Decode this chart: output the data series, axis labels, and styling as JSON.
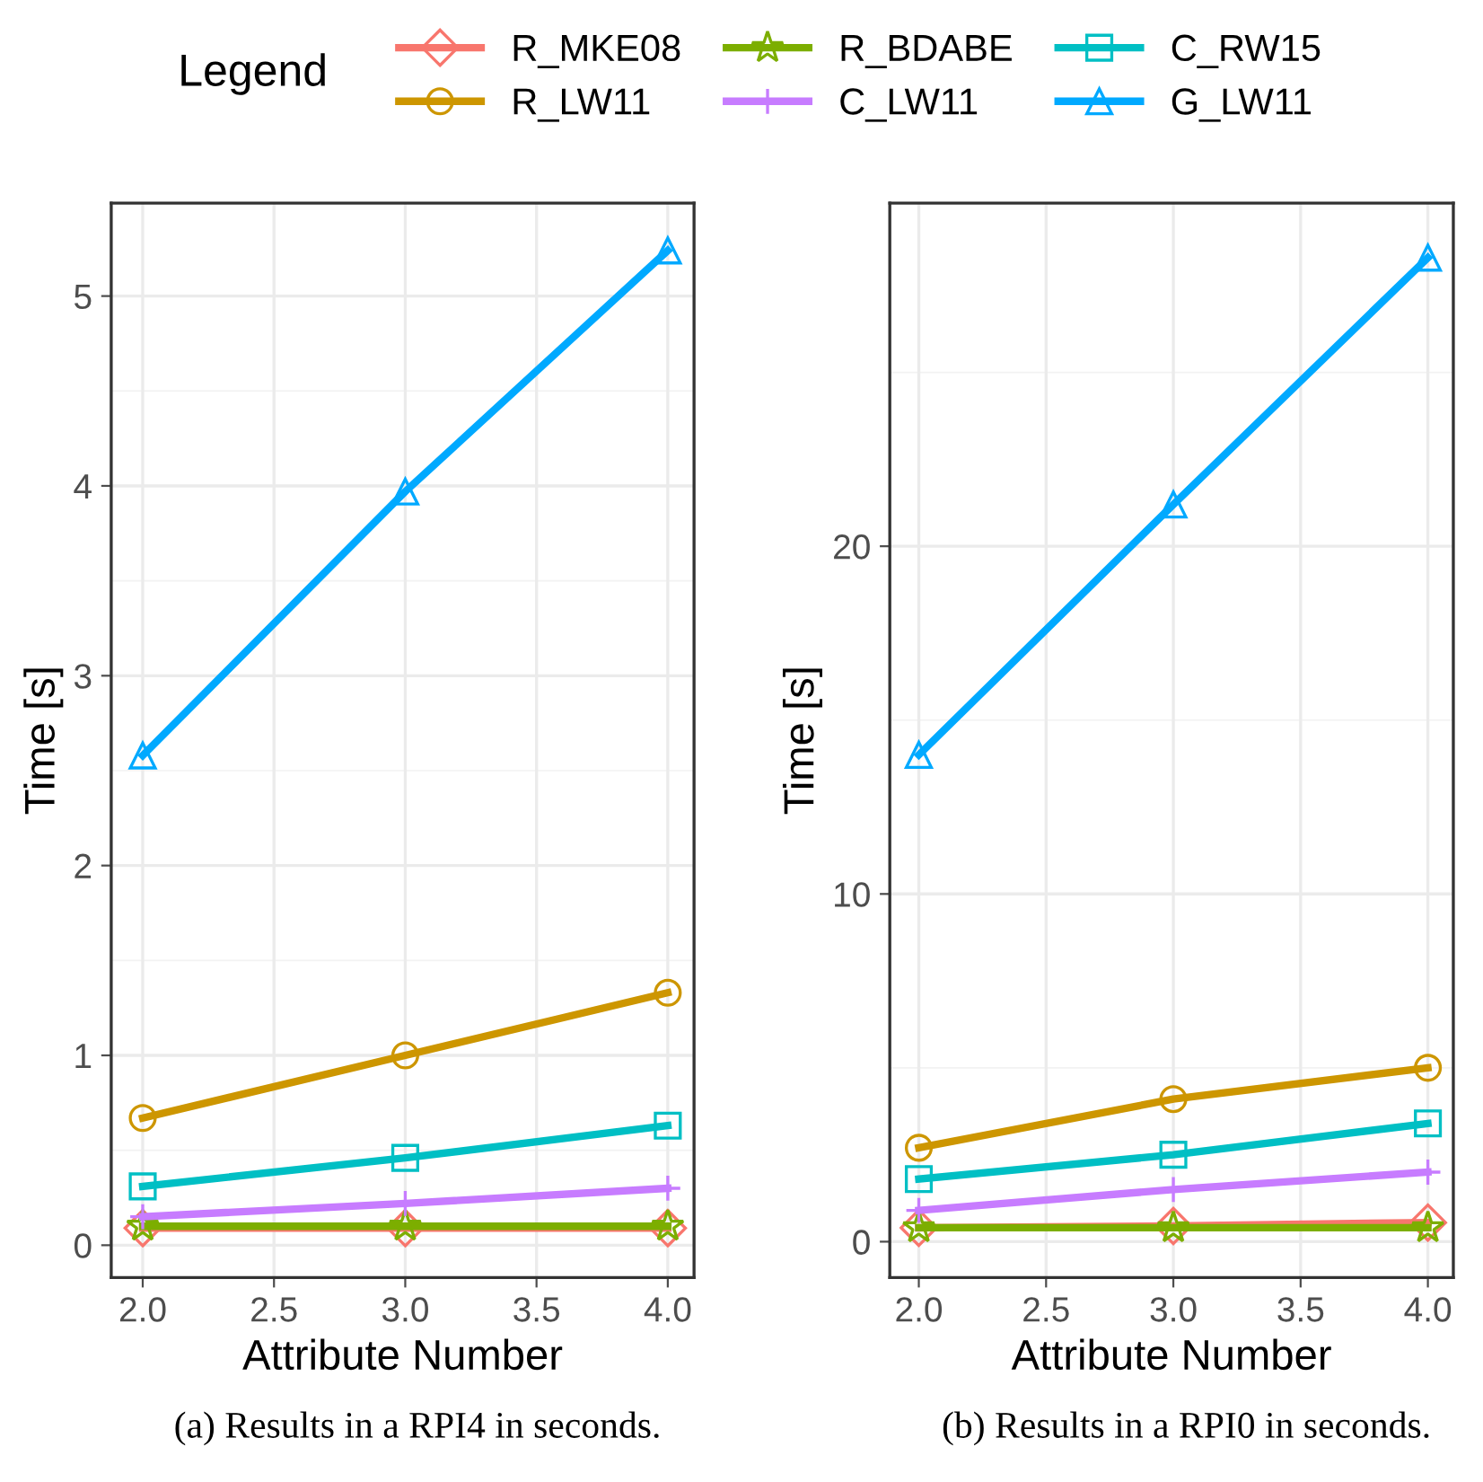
{
  "chart_data": [
    {
      "type": "line",
      "xlabel": "Attribute Number",
      "ylabel": "Time [s]",
      "legend_title": "Legend",
      "legend": "top",
      "grid": true,
      "line_style": "solid",
      "x": [
        2.0,
        3.0,
        4.0
      ],
      "xlim": [
        1.88,
        4.1
      ],
      "ylim": [
        -0.17,
        5.49
      ],
      "xticks": [
        {
          "value": 2.0,
          "label": "2.0"
        },
        {
          "value": 2.5,
          "label": "2.5"
        },
        {
          "value": 3.0,
          "label": "3.0"
        },
        {
          "value": 3.5,
          "label": "3.5"
        },
        {
          "value": 4.0,
          "label": "4.0"
        }
      ],
      "yticks": [
        0,
        1,
        2,
        3,
        4,
        5
      ],
      "annotations": [
        "(a) Results in a RPI4 in seconds."
      ],
      "series": [
        {
          "name": "R_MKE08",
          "color": "#f8766d",
          "marker": "diamond",
          "values": [
            0.09,
            0.09,
            0.09
          ]
        },
        {
          "name": "R_LW11",
          "color": "#cd9600",
          "marker": "circle",
          "values": [
            0.67,
            1.0,
            1.33
          ]
        },
        {
          "name": "R_BDABE",
          "color": "#7cae00",
          "marker": "star",
          "values": [
            0.1,
            0.1,
            0.1
          ]
        },
        {
          "name": "C_LW11",
          "color": "#c77cff",
          "marker": "cross",
          "values": [
            0.15,
            0.22,
            0.3
          ]
        },
        {
          "name": "C_RW15",
          "color": "#00bfc4",
          "marker": "square",
          "values": [
            0.31,
            0.46,
            0.63
          ]
        },
        {
          "name": "G_LW11",
          "color": "#00a9ff",
          "marker": "triangle",
          "values": [
            2.58,
            3.97,
            5.24
          ]
        }
      ]
    },
    {
      "type": "line",
      "xlabel": "Attribute Number",
      "ylabel": "Time [s]",
      "grid": true,
      "line_style": "solid",
      "x": [
        2.0,
        3.0,
        4.0
      ],
      "xlim": [
        1.886,
        4.1
      ],
      "ylim": [
        -1.03,
        29.87
      ],
      "xticks": [
        {
          "value": 2.0,
          "label": "2.0"
        },
        {
          "value": 2.5,
          "label": "2.5"
        },
        {
          "value": 3.0,
          "label": "3.0"
        },
        {
          "value": 3.5,
          "label": "3.5"
        },
        {
          "value": 4.0,
          "label": "4.0"
        }
      ],
      "yticks": [
        0,
        10,
        20
      ],
      "annotations": [
        "(b) Results in a RPI0 in seconds."
      ],
      "series": [
        {
          "color": "#f8766d",
          "marker": "diamond",
          "values": [
            0.4,
            0.45,
            0.55
          ]
        },
        {
          "color": "#cd9600",
          "marker": "circle",
          "values": [
            2.7,
            4.1,
            5.0
          ]
        },
        {
          "color": "#7cae00",
          "marker": "star",
          "values": [
            0.4,
            0.4,
            0.4
          ]
        },
        {
          "color": "#c77cff",
          "marker": "cross",
          "values": [
            0.9,
            1.5,
            2.0
          ]
        },
        {
          "color": "#00bfc4",
          "marker": "square",
          "values": [
            1.8,
            2.5,
            3.4
          ]
        },
        {
          "color": "#00a9ff",
          "marker": "triangle",
          "values": [
            14.0,
            21.2,
            28.3
          ]
        }
      ]
    }
  ]
}
